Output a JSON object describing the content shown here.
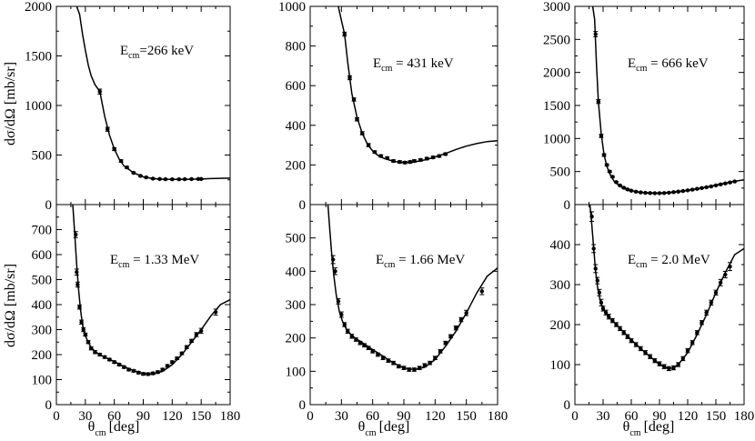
{
  "shared": {
    "xlabel": "θ",
    "xlabel_sub": "cm",
    "xlabel_unit": "[deg]",
    "ylabel": "dσ/dΩ [mb/sr]",
    "xlim": [
      0,
      180
    ],
    "xticks": [
      0,
      30,
      60,
      90,
      120,
      150,
      180
    ]
  },
  "chart_data": [
    {
      "type": "scatter",
      "energy_label": "E",
      "energy_sub": "cm",
      "energy_value": "=266 keV",
      "ylim": [
        0,
        2000
      ],
      "yticks": [
        0,
        500,
        1000,
        1500,
        2000
      ],
      "x": [
        45,
        53,
        60,
        67,
        73,
        80,
        87,
        93,
        100,
        107,
        113,
        120,
        127,
        133,
        140,
        147,
        150
      ],
      "y": [
        1140,
        760,
        560,
        440,
        375,
        320,
        290,
        275,
        262,
        258,
        256,
        255,
        255,
        256,
        257,
        258,
        258
      ],
      "err": [
        25,
        20,
        15,
        12,
        10,
        8,
        8,
        6,
        6,
        6,
        6,
        5,
        5,
        5,
        5,
        5,
        5
      ],
      "fit_x": [
        21,
        24,
        27,
        30,
        33,
        36,
        40,
        45,
        50,
        55,
        60,
        65,
        70,
        80,
        90,
        100,
        110,
        120,
        130,
        140,
        150,
        160,
        170,
        180
      ],
      "fit_y": [
        2000,
        1920,
        1720,
        1560,
        1410,
        1300,
        1210,
        1140,
        890,
        700,
        560,
        460,
        390,
        320,
        280,
        262,
        256,
        254,
        255,
        256,
        258,
        262,
        265,
        267
      ]
    },
    {
      "type": "scatter",
      "energy_label": "E",
      "energy_sub": "cm",
      "energy_value": " = 431 keV",
      "ylim": [
        0,
        1000
      ],
      "yticks": [
        0,
        200,
        400,
        600,
        800,
        1000
      ],
      "x": [
        33,
        38,
        42,
        45,
        50,
        56,
        62,
        68,
        74,
        80,
        86,
        91,
        96,
        100,
        106,
        112,
        118,
        124,
        130
      ],
      "y": [
        860,
        640,
        530,
        430,
        360,
        300,
        265,
        245,
        235,
        220,
        215,
        212,
        215,
        220,
        225,
        232,
        238,
        245,
        255
      ],
      "err": [
        10,
        10,
        8,
        8,
        8,
        8,
        6,
        6,
        6,
        6,
        6,
        6,
        6,
        6,
        6,
        6,
        6,
        6,
        6
      ],
      "fit_x": [
        27,
        30,
        33,
        36,
        40,
        45,
        50,
        55,
        60,
        65,
        70,
        80,
        90,
        100,
        110,
        120,
        130,
        140,
        150,
        160,
        170,
        180
      ],
      "fit_y": [
        1000,
        930,
        860,
        720,
        560,
        440,
        360,
        305,
        270,
        248,
        235,
        218,
        212,
        215,
        225,
        240,
        258,
        278,
        295,
        308,
        318,
        322
      ]
    },
    {
      "type": "scatter",
      "energy_label": "E",
      "energy_sub": "cm",
      "energy_value": " = 666 keV",
      "ylim": [
        0,
        3000
      ],
      "yticks": [
        0,
        500,
        1000,
        1500,
        2000,
        2500,
        3000
      ],
      "x": [
        22,
        25,
        28,
        31,
        34,
        37,
        40,
        44,
        48,
        52,
        56,
        60,
        65,
        70,
        75,
        80,
        85,
        90,
        95,
        100,
        105,
        110,
        115,
        120,
        125,
        130,
        135,
        140,
        145,
        150,
        155,
        160,
        165,
        170
      ],
      "y": [
        2580,
        1560,
        1040,
        750,
        600,
        500,
        420,
        340,
        290,
        255,
        230,
        210,
        195,
        185,
        178,
        175,
        172,
        172,
        175,
        180,
        188,
        196,
        205,
        215,
        226,
        238,
        250,
        262,
        275,
        290,
        305,
        320,
        335,
        350
      ],
      "err": [
        40,
        30,
        25,
        20,
        15,
        12,
        10,
        10,
        10,
        8,
        8,
        8,
        8,
        8,
        8,
        8,
        8,
        8,
        8,
        8,
        8,
        8,
        8,
        8,
        8,
        8,
        8,
        8,
        8,
        8,
        8,
        8,
        8,
        8
      ],
      "fit_x": [
        19,
        21,
        23,
        25,
        28,
        31,
        34,
        38,
        42,
        46,
        50,
        55,
        60,
        70,
        80,
        90,
        100,
        110,
        120,
        130,
        140,
        150,
        160,
        170,
        180
      ],
      "fit_y": [
        3000,
        2800,
        2100,
        1560,
        1080,
        760,
        580,
        440,
        350,
        300,
        260,
        230,
        210,
        185,
        175,
        172,
        180,
        196,
        216,
        240,
        265,
        295,
        325,
        352,
        375
      ]
    },
    {
      "type": "scatter",
      "energy_label": "E",
      "energy_sub": "cm",
      "energy_value": " = 1.33 MeV",
      "ylim": [
        0,
        800
      ],
      "yticks": [
        0,
        100,
        200,
        300,
        400,
        500,
        600,
        700
      ],
      "x": [
        20,
        21,
        22,
        24,
        26,
        28,
        30,
        33,
        36,
        40,
        45,
        50,
        55,
        60,
        65,
        70,
        75,
        80,
        85,
        90,
        95,
        100,
        105,
        110,
        115,
        120,
        125,
        130,
        135,
        140,
        145,
        150,
        165
      ],
      "y": [
        680,
        530,
        480,
        390,
        330,
        300,
        280,
        250,
        225,
        210,
        200,
        190,
        180,
        170,
        160,
        150,
        140,
        135,
        128,
        123,
        122,
        125,
        130,
        140,
        155,
        170,
        185,
        205,
        230,
        255,
        280,
        295,
        370
      ],
      "err": [
        12,
        12,
        10,
        8,
        8,
        8,
        6,
        6,
        6,
        6,
        5,
        5,
        5,
        5,
        5,
        5,
        5,
        5,
        5,
        5,
        5,
        5,
        5,
        5,
        5,
        5,
        5,
        5,
        6,
        6,
        8,
        10,
        12
      ],
      "fit_x": [
        17,
        19,
        21,
        23,
        25,
        27,
        30,
        35,
        40,
        45,
        50,
        60,
        70,
        80,
        90,
        100,
        110,
        120,
        130,
        140,
        150,
        160,
        170,
        180
      ],
      "fit_y": [
        800,
        680,
        560,
        460,
        380,
        320,
        275,
        235,
        212,
        200,
        190,
        172,
        152,
        136,
        124,
        122,
        133,
        160,
        200,
        250,
        300,
        355,
        400,
        420
      ]
    },
    {
      "type": "scatter",
      "energy_label": "E",
      "energy_sub": "cm",
      "energy_value": " = 1.66 MeV",
      "ylim": [
        0,
        600
      ],
      "yticks": [
        0,
        100,
        200,
        300,
        400,
        500
      ],
      "x": [
        22,
        24,
        27,
        30,
        33,
        36,
        40,
        44,
        48,
        52,
        56,
        60,
        65,
        70,
        75,
        80,
        85,
        90,
        95,
        100,
        105,
        110,
        115,
        120,
        125,
        130,
        135,
        140,
        145,
        150,
        165
      ],
      "y": [
        435,
        400,
        310,
        270,
        240,
        220,
        205,
        195,
        185,
        178,
        170,
        160,
        150,
        140,
        132,
        125,
        115,
        110,
        105,
        105,
        110,
        118,
        125,
        140,
        160,
        185,
        205,
        230,
        255,
        275,
        340
      ],
      "err": [
        12,
        10,
        8,
        8,
        6,
        6,
        6,
        5,
        5,
        5,
        5,
        5,
        5,
        5,
        5,
        5,
        5,
        5,
        5,
        5,
        5,
        5,
        5,
        5,
        5,
        5,
        5,
        6,
        6,
        8,
        10
      ],
      "fit_x": [
        17,
        19,
        21,
        23,
        25,
        28,
        31,
        35,
        40,
        45,
        50,
        60,
        70,
        80,
        90,
        100,
        110,
        120,
        130,
        140,
        150,
        160,
        170,
        180
      ],
      "fit_y": [
        600,
        520,
        440,
        380,
        330,
        280,
        250,
        225,
        207,
        196,
        186,
        165,
        145,
        125,
        110,
        105,
        112,
        135,
        175,
        220,
        275,
        335,
        385,
        410
      ]
    },
    {
      "type": "scatter",
      "energy_label": "E",
      "energy_sub": "cm",
      "energy_value": " = 2.0 MeV",
      "ylim": [
        0,
        500
      ],
      "yticks": [
        0,
        100,
        200,
        300,
        400
      ],
      "x": [
        18,
        20,
        22,
        24,
        26,
        28,
        30,
        33,
        36,
        40,
        44,
        48,
        52,
        56,
        60,
        65,
        70,
        75,
        80,
        85,
        90,
        95,
        100,
        105,
        110,
        115,
        120,
        125,
        130,
        135,
        140,
        145,
        150,
        155,
        160,
        165
      ],
      "y": [
        470,
        390,
        340,
        310,
        280,
        255,
        240,
        230,
        220,
        210,
        200,
        190,
        180,
        170,
        160,
        150,
        140,
        130,
        120,
        110,
        102,
        95,
        90,
        92,
        100,
        115,
        135,
        155,
        180,
        205,
        230,
        255,
        280,
        305,
        325,
        345
      ],
      "err": [
        12,
        10,
        10,
        8,
        8,
        8,
        6,
        6,
        6,
        5,
        5,
        5,
        5,
        5,
        5,
        5,
        5,
        5,
        5,
        5,
        5,
        5,
        5,
        5,
        5,
        5,
        5,
        5,
        5,
        5,
        6,
        6,
        6,
        8,
        8,
        10
      ],
      "fit_x": [
        16,
        18,
        20,
        22,
        24,
        27,
        30,
        35,
        40,
        45,
        50,
        60,
        70,
        80,
        90,
        100,
        105,
        110,
        120,
        130,
        140,
        150,
        160,
        170,
        180
      ],
      "fit_y": [
        500,
        450,
        390,
        335,
        295,
        260,
        240,
        222,
        210,
        198,
        186,
        162,
        140,
        120,
        100,
        90,
        92,
        100,
        130,
        175,
        225,
        280,
        330,
        375,
        390
      ]
    }
  ]
}
